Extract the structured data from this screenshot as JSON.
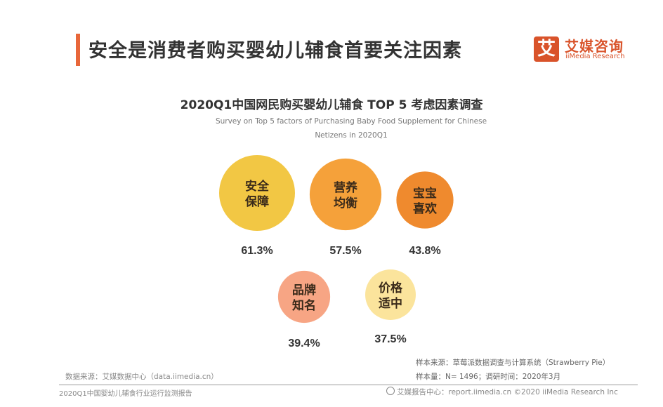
{
  "header": {
    "title": "安全是消费者购买婴幼儿辅食首要关注因素",
    "accent_color": "#e8673a"
  },
  "logo": {
    "mark": "艾",
    "name_cn": "艾媒咨询",
    "name_en": "iiMedia Research",
    "color": "#d9532a"
  },
  "chart_data": {
    "type": "bubble",
    "title": "2020Q1中国网民购买婴幼儿辅食 TOP 5 考虑因素调查",
    "subtitle_line1": "Survey on Top 5 factors of Purchasing Baby Food Supplement for Chinese",
    "subtitle_line2": "Netizens in 2020Q1",
    "unit": "%",
    "items": [
      {
        "label_line1": "安全",
        "label_line2": "保障",
        "value": 61.3,
        "value_label": "61.3%",
        "color": "#f2c744"
      },
      {
        "label_line1": "营养",
        "label_line2": "均衡",
        "value": 57.5,
        "value_label": "57.5%",
        "color": "#f5a13a"
      },
      {
        "label_line1": "宝宝",
        "label_line2": "喜欢",
        "value": 43.8,
        "value_label": "43.8%",
        "color": "#ef8a2e"
      },
      {
        "label_line1": "品牌",
        "label_line2": "知名",
        "value": 39.4,
        "value_label": "39.4%",
        "color": "#f7a584"
      },
      {
        "label_line1": "价格",
        "label_line2": "适中",
        "value": 37.5,
        "value_label": "37.5%",
        "color": "#fbe49c"
      }
    ]
  },
  "footer": {
    "data_source": "数据来源：艾媒数据中心（data.iimedia.cn）",
    "report_name": "2020Q1中国婴幼儿辅食行业运行监测报告",
    "sample_source": "样本来源：草莓派数据调查与计算系统（Strawberry Pie）",
    "sample_size": "样本量：N= 1496；调研时间：2020年3月",
    "copyright": "艾媒报告中心：report.iimedia.cn ©2020 iiMedia Research Inc"
  }
}
